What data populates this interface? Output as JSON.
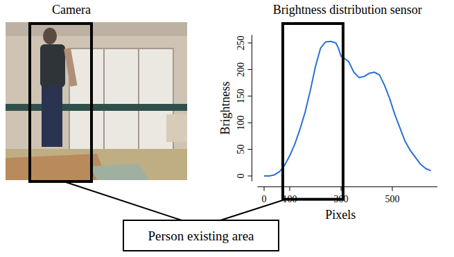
{
  "camera": {
    "title": "Camera"
  },
  "chart_data": {
    "type": "line",
    "title": "Brightness distribution sensor",
    "x_label": "Pixels",
    "y_label": "Brightness",
    "x": [
      0,
      20,
      40,
      60,
      80,
      100,
      120,
      140,
      160,
      180,
      200,
      220,
      240,
      260,
      280,
      290,
      300,
      310,
      330,
      350,
      370,
      390,
      410,
      430,
      450,
      470,
      490,
      510,
      530,
      550,
      570,
      590,
      610,
      630,
      650
    ],
    "values": [
      0,
      0,
      2,
      8,
      20,
      38,
      60,
      88,
      120,
      160,
      205,
      240,
      252,
      253,
      250,
      240,
      225,
      222,
      215,
      195,
      185,
      187,
      193,
      195,
      190,
      170,
      145,
      115,
      90,
      65,
      48,
      35,
      22,
      14,
      10
    ],
    "color": "#2b6fd6",
    "xlim": [
      -26,
      676
    ],
    "ylim": [
      -10,
      265
    ],
    "xticks": [
      0,
      100,
      300,
      500
    ],
    "yticks": [
      0,
      50,
      100,
      150,
      200,
      250
    ],
    "grid": false,
    "annotations": [
      {
        "text": "Person existing area",
        "xrange": [
          73,
          308
        ]
      }
    ]
  }
}
